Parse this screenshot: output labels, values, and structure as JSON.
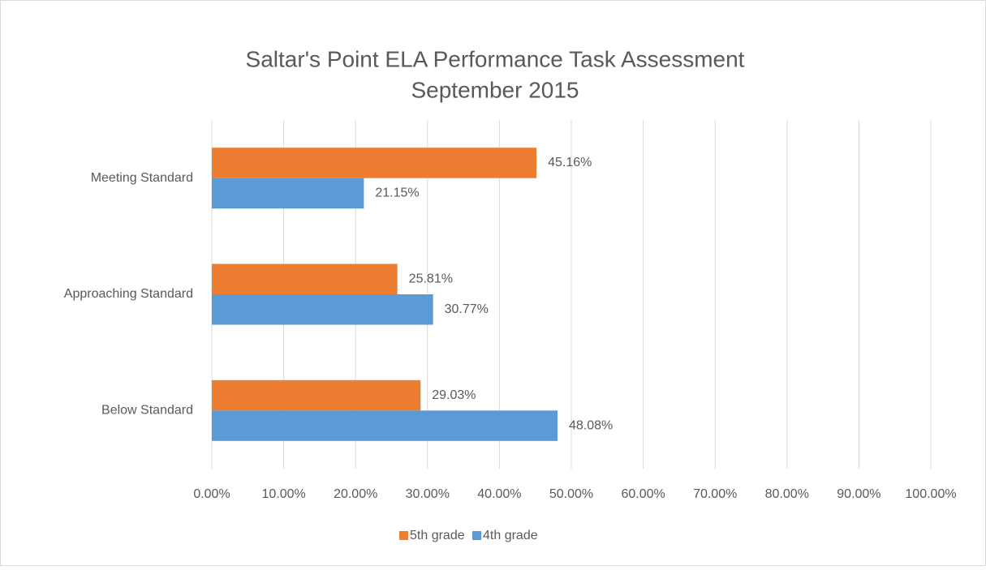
{
  "chart_data": {
    "type": "hbar",
    "title": "Saltar's Point ELA Performance Task Assessment",
    "subtitle": "September 2015",
    "categories": [
      "Meeting Standard",
      "Approaching Standard",
      "Below Standard"
    ],
    "series": [
      {
        "name": "5th grade",
        "color": "#ed7d31",
        "values": [
          45.16,
          25.81,
          29.03
        ],
        "value_labels": [
          "45.16%",
          "25.81%",
          "29.03%"
        ]
      },
      {
        "name": "4th grade",
        "color": "#5b9bd5",
        "values": [
          21.15,
          30.77,
          48.08
        ],
        "value_labels": [
          "21.15%",
          "30.77%",
          "48.08%"
        ]
      }
    ],
    "xlim": [
      0,
      100
    ],
    "xticks": [
      {
        "value": 0,
        "label": "0.00%"
      },
      {
        "value": 10,
        "label": "10.00%"
      },
      {
        "value": 20,
        "label": "20.00%"
      },
      {
        "value": 30,
        "label": "30.00%"
      },
      {
        "value": 40,
        "label": "40.00%"
      },
      {
        "value": 50,
        "label": "50.00%"
      },
      {
        "value": 60,
        "label": "60.00%"
      },
      {
        "value": 70,
        "label": "70.00%"
      },
      {
        "value": 80,
        "label": "80.00%"
      },
      {
        "value": 90,
        "label": "90.00%"
      },
      {
        "value": 100,
        "label": "100.00%"
      }
    ],
    "grid": true,
    "legend": "bottom"
  }
}
